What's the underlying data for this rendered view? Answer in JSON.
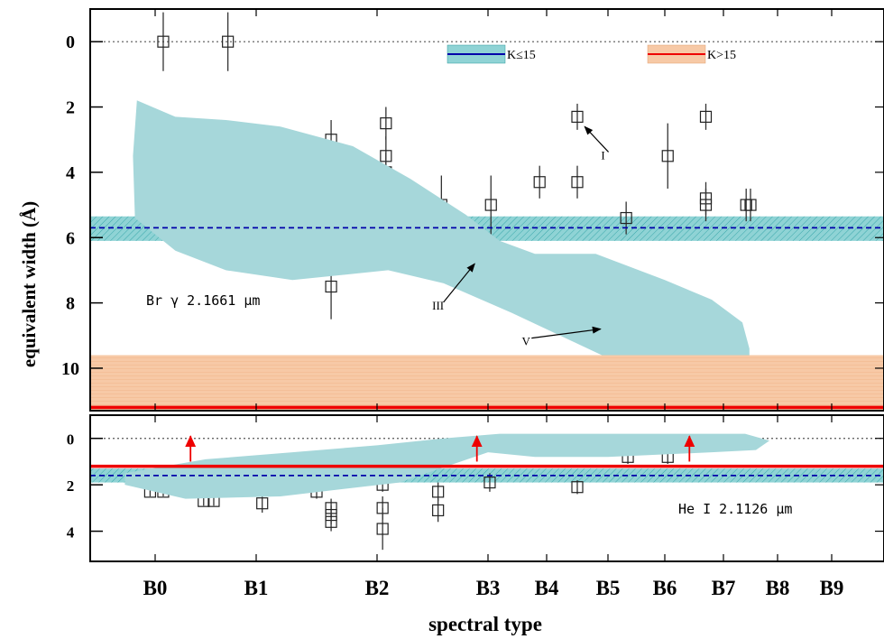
{
  "chart_data": {
    "type": "scatter",
    "xlabel": "spectral type",
    "ylabel": "equivalent width (Å)",
    "categories": [
      "B0",
      "B1",
      "B2",
      "B3",
      "B4",
      "B5",
      "B6",
      "B7",
      "B8",
      "B9"
    ],
    "colors": {
      "band_k_le_15": "#8fd3d5",
      "band_k_gt_15": "#f7c9a6",
      "line_k_le_15": "#0000aa",
      "line_k_gt_15": "#ee0000",
      "region": "#a6d7da",
      "arrow_red": "#ee0000"
    },
    "legend": {
      "placement": "top-right",
      "entries": [
        {
          "label": "K≤15",
          "color": "#0000aa",
          "band": "#8fd3d5"
        },
        {
          "label": "K>15",
          "color": "#ee0000",
          "band": "#f7c9a6"
        }
      ]
    },
    "panels": [
      {
        "name": "top",
        "line_label": "Br γ 2.1661 μm",
        "y_ticks": [
          "0",
          "2",
          "4",
          "6",
          "8",
          "10"
        ],
        "ylim": [
          11.3,
          -1.0
        ],
        "y_inverted": true,
        "k_le_15": {
          "value": 5.7,
          "band": [
            5.35,
            6.1
          ]
        },
        "k_gt_15": {
          "value": 11.2,
          "band": [
            9.6,
            12.2
          ]
        },
        "points": [
          {
            "x": 0.08,
            "y": 0.0,
            "err": 0.9
          },
          {
            "x": 0.72,
            "y": 0.0,
            "err": 0.9
          },
          {
            "x": 1.62,
            "y": 3.0,
            "err": 0.6
          },
          {
            "x": 1.62,
            "y": 7.5,
            "err": 1.0
          },
          {
            "x": 2.08,
            "y": 2.5,
            "err": 0.5
          },
          {
            "x": 2.08,
            "y": 3.5,
            "err": 0.6
          },
          {
            "x": 2.08,
            "y": 4.0,
            "err": 0.6
          },
          {
            "x": 2.58,
            "y": 5.0,
            "err": 0.9
          },
          {
            "x": 3.05,
            "y": 5.0,
            "err": 0.9
          },
          {
            "x": 3.88,
            "y": 4.3,
            "err": 0.5
          },
          {
            "x": 4.5,
            "y": 2.3,
            "err": 0.4
          },
          {
            "x": 4.5,
            "y": 4.3,
            "err": 0.5
          },
          {
            "x": 5.32,
            "y": 5.4,
            "err": 0.5
          },
          {
            "x": 6.05,
            "y": 3.5,
            "err": 1.0
          },
          {
            "x": 6.7,
            "y": 2.3,
            "err": 0.4
          },
          {
            "x": 6.7,
            "y": 4.8,
            "err": 0.5
          },
          {
            "x": 6.7,
            "y": 5.0,
            "err": 0.5
          },
          {
            "x": 7.42,
            "y": 5.0,
            "err": 0.5
          },
          {
            "x": 7.5,
            "y": 5.0,
            "err": 0.5
          }
        ],
        "region": [
          [
            -0.18,
            1.8
          ],
          [
            0.2,
            2.3
          ],
          [
            0.7,
            2.4
          ],
          [
            1.2,
            2.6
          ],
          [
            1.8,
            3.2
          ],
          [
            2.3,
            4.2
          ],
          [
            2.8,
            5.3
          ],
          [
            3.2,
            6.1
          ],
          [
            3.8,
            6.5
          ],
          [
            4.8,
            6.5
          ],
          [
            6.0,
            7.3
          ],
          [
            6.8,
            7.9
          ],
          [
            7.35,
            8.6
          ],
          [
            7.48,
            9.4
          ],
          [
            7.48,
            9.6
          ],
          [
            4.9,
            9.6
          ],
          [
            3.4,
            8.3
          ],
          [
            2.6,
            7.4
          ],
          [
            2.1,
            7.0
          ],
          [
            1.3,
            7.3
          ],
          [
            0.7,
            7.0
          ],
          [
            0.2,
            6.4
          ],
          [
            -0.2,
            5.4
          ],
          [
            -0.22,
            3.5
          ]
        ],
        "annotations": [
          {
            "label": "I",
            "text_at": [
              4.92,
              3.6
            ],
            "arrow_to": [
              4.62,
              2.6
            ]
          },
          {
            "label": "III",
            "text_at": [
              2.55,
              8.2
            ],
            "arrow_to": [
              2.88,
              6.8
            ]
          },
          {
            "label": "V",
            "text_at": [
              3.65,
              9.3
            ],
            "arrow_to": [
              4.88,
              8.8
            ]
          }
        ]
      },
      {
        "name": "bottom",
        "line_label": "He I 2.1126 μm",
        "y_ticks": [
          "0",
          "2",
          "4"
        ],
        "ylim": [
          5.3,
          -1.0
        ],
        "y_inverted": true,
        "k_le_15": {
          "value": 1.6,
          "band": [
            1.3,
            1.9
          ]
        },
        "k_gt_15": {
          "value": 1.2,
          "band": [
            1.2,
            1.2
          ]
        },
        "points": [
          {
            "x": -0.05,
            "y": 2.3,
            "err": 0.2
          },
          {
            "x": 0.08,
            "y": 2.3,
            "err": 0.2
          },
          {
            "x": 0.48,
            "y": 2.7,
            "err": 0.2
          },
          {
            "x": 0.58,
            "y": 2.7,
            "err": 0.2
          },
          {
            "x": 1.05,
            "y": 2.8,
            "err": 0.4
          },
          {
            "x": 1.5,
            "y": 2.3,
            "err": 0.3
          },
          {
            "x": 1.62,
            "y": 3.0,
            "err": 0.4
          },
          {
            "x": 1.62,
            "y": 3.3,
            "err": 0.4
          },
          {
            "x": 1.62,
            "y": 3.6,
            "err": 0.4
          },
          {
            "x": 2.05,
            "y": 2.0,
            "err": 0.3
          },
          {
            "x": 2.05,
            "y": 3.0,
            "err": 0.5
          },
          {
            "x": 2.05,
            "y": 3.9,
            "err": 0.9
          },
          {
            "x": 2.55,
            "y": 2.3,
            "err": 0.4
          },
          {
            "x": 2.55,
            "y": 3.1,
            "err": 0.5
          },
          {
            "x": 3.03,
            "y": 1.9,
            "err": 0.4
          },
          {
            "x": 4.5,
            "y": 2.1,
            "err": 0.3
          },
          {
            "x": 5.35,
            "y": 0.8,
            "err": 0.3
          },
          {
            "x": 6.05,
            "y": 0.8,
            "err": 0.3
          }
        ],
        "region": [
          [
            -0.3,
            1.5
          ],
          [
            0.5,
            0.9
          ],
          [
            1.3,
            0.6
          ],
          [
            2.0,
            0.3
          ],
          [
            2.6,
            0.0
          ],
          [
            3.2,
            -0.2
          ],
          [
            5.0,
            -0.2
          ],
          [
            6.8,
            -0.2
          ],
          [
            7.4,
            -0.2
          ],
          [
            7.85,
            0.1
          ],
          [
            7.6,
            0.5
          ],
          [
            6.8,
            0.6
          ],
          [
            5.0,
            0.8
          ],
          [
            3.8,
            0.8
          ],
          [
            3.0,
            0.6
          ],
          [
            2.2,
            1.9
          ],
          [
            1.2,
            2.5
          ],
          [
            0.3,
            2.6
          ],
          [
            -0.3,
            2.0
          ]
        ],
        "lower_limits": [
          {
            "x": 0.35,
            "from": 1.0,
            "to": -0.1
          },
          {
            "x": 2.9,
            "from": 1.0,
            "to": -0.1
          },
          {
            "x": 6.42,
            "from": 1.0,
            "to": -0.1
          }
        ]
      }
    ]
  }
}
